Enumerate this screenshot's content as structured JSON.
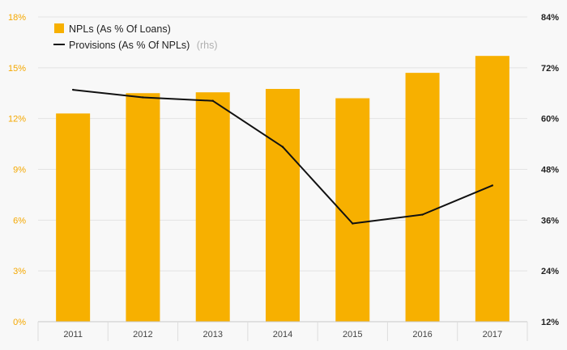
{
  "chart_data": {
    "type": "bar",
    "categories": [
      "2011",
      "2012",
      "2013",
      "2014",
      "2015",
      "2016",
      "2017"
    ],
    "series": [
      {
        "name": "NPLs (As % Of Loans)",
        "type": "bar",
        "axis": "left",
        "color": "#f7b000",
        "values": [
          12.3,
          13.5,
          13.55,
          13.75,
          13.2,
          14.7,
          15.7
        ]
      },
      {
        "name": "Provisions (As % Of NPLs)",
        "name_note": "(rhs)",
        "type": "line",
        "axis": "right",
        "color": "#111111",
        "values": [
          66.8,
          65.0,
          64.2,
          53.3,
          35.2,
          37.3,
          44.2
        ]
      }
    ],
    "y_left": {
      "min": 0,
      "max": 18,
      "step": 3,
      "tick_labels": [
        "0%",
        "3%",
        "6%",
        "9%",
        "12%",
        "15%",
        "18%"
      ],
      "color": "#f5a800"
    },
    "y_right": {
      "min": 12,
      "max": 84,
      "step": 12,
      "tick_labels": [
        "12%",
        "24%",
        "36%",
        "48%",
        "60%",
        "72%",
        "84%"
      ]
    },
    "grid": true,
    "legend_position": "top-left"
  }
}
